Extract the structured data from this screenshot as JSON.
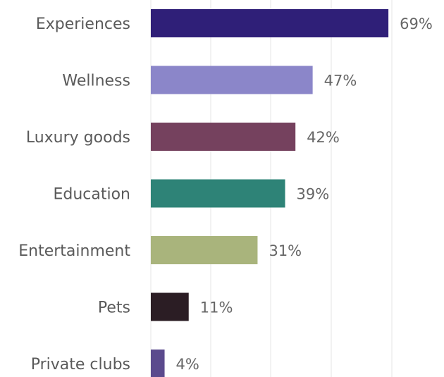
{
  "chart_data": {
    "type": "bar",
    "orientation": "horizontal",
    "categories": [
      "Experiences",
      "Wellness",
      "Luxury goods",
      "Education",
      "Entertainment",
      "Pets",
      "Private clubs"
    ],
    "values": [
      69,
      47,
      42,
      39,
      31,
      11,
      4
    ],
    "value_labels": [
      "69%",
      "47%",
      "42%",
      "39%",
      "31%",
      "11%",
      "4%"
    ],
    "colors": [
      "#2f1f78",
      "#8b86c9",
      "#75415e",
      "#2e8377",
      "#a9b47c",
      "#2b1d24",
      "#5b4a8d"
    ],
    "xlim": [
      0,
      70
    ],
    "grid": true,
    "legend": "none",
    "title": "",
    "xlabel": "",
    "ylabel": ""
  }
}
